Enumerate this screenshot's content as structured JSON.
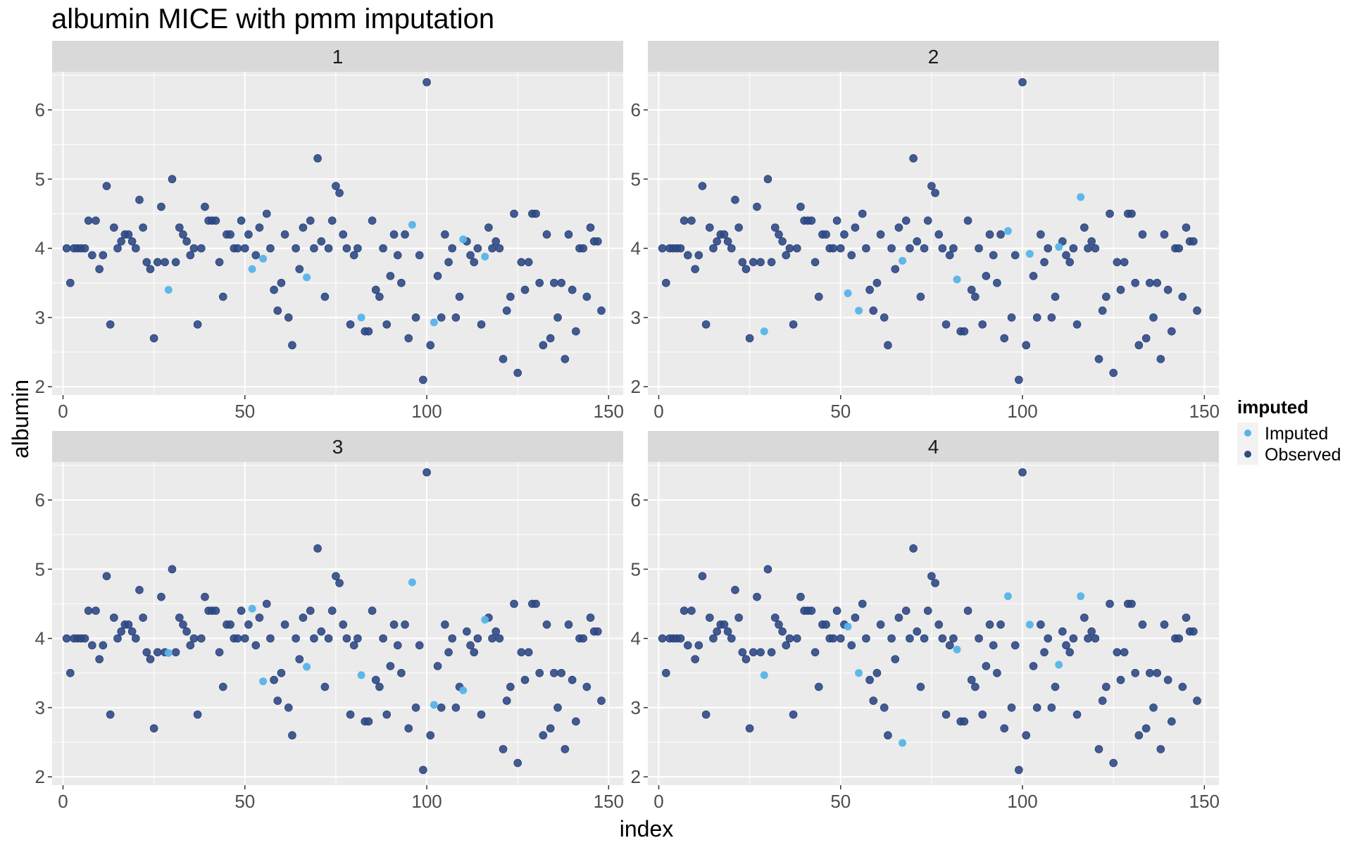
{
  "chart_data": {
    "type": "scatter",
    "title": "albumin MICE with pmm imputation",
    "xlabel": "index",
    "ylabel": "albumin",
    "xlim": [
      -3,
      154
    ],
    "ylim": [
      1.88,
      6.55
    ],
    "xticks": [
      0,
      50,
      100,
      150
    ],
    "yticks": [
      2,
      3,
      4,
      5,
      6
    ],
    "grid": true,
    "legend": {
      "title": "imputed",
      "position": "right",
      "entries": [
        {
          "label": "Imputed",
          "color": "#56B4E9"
        },
        {
          "label": "Observed",
          "color": "#2F4A86"
        }
      ]
    },
    "colors": {
      "imputed": "#56B4E9",
      "observed": "#2F4A86",
      "panel_bg": "#EBEBEB",
      "strip_bg": "#D9D9D9",
      "grid": "#FFFFFF"
    },
    "observed": [
      [
        1,
        4.0
      ],
      [
        2,
        3.5
      ],
      [
        3,
        4.0
      ],
      [
        4,
        4.0
      ],
      [
        5,
        4.0
      ],
      [
        6,
        4.0
      ],
      [
        7,
        4.4
      ],
      [
        8,
        3.9
      ],
      [
        9,
        4.4
      ],
      [
        10,
        3.7
      ],
      [
        11,
        3.9
      ],
      [
        12,
        4.9
      ],
      [
        13,
        2.9
      ],
      [
        14,
        4.3
      ],
      [
        15,
        4.0
      ],
      [
        16,
        4.1
      ],
      [
        17,
        4.2
      ],
      [
        18,
        4.2
      ],
      [
        19,
        4.1
      ],
      [
        20,
        4.0
      ],
      [
        21,
        4.7
      ],
      [
        22,
        4.3
      ],
      [
        23,
        3.8
      ],
      [
        24,
        3.7
      ],
      [
        25,
        2.7
      ],
      [
        26,
        3.8
      ],
      [
        27,
        4.6
      ],
      [
        28,
        3.8
      ],
      [
        30,
        5.0
      ],
      [
        31,
        3.8
      ],
      [
        32,
        4.3
      ],
      [
        33,
        4.2
      ],
      [
        34,
        4.1
      ],
      [
        35,
        3.9
      ],
      [
        36,
        4.0
      ],
      [
        37,
        2.9
      ],
      [
        38,
        4.0
      ],
      [
        39,
        4.6
      ],
      [
        40,
        4.4
      ],
      [
        41,
        4.4
      ],
      [
        42,
        4.4
      ],
      [
        43,
        3.8
      ],
      [
        44,
        3.3
      ],
      [
        45,
        4.2
      ],
      [
        46,
        4.2
      ],
      [
        47,
        4.0
      ],
      [
        48,
        4.0
      ],
      [
        49,
        4.4
      ],
      [
        50,
        4.0
      ],
      [
        51,
        4.2
      ],
      [
        53,
        3.9
      ],
      [
        54,
        4.3
      ],
      [
        56,
        4.5
      ],
      [
        57,
        4.0
      ],
      [
        58,
        3.4
      ],
      [
        59,
        3.1
      ],
      [
        60,
        3.5
      ],
      [
        61,
        4.2
      ],
      [
        62,
        3.0
      ],
      [
        63,
        2.6
      ],
      [
        64,
        4.0
      ],
      [
        65,
        3.7
      ],
      [
        66,
        4.3
      ],
      [
        68,
        4.4
      ],
      [
        69,
        4.0
      ],
      [
        70,
        5.3
      ],
      [
        71,
        4.1
      ],
      [
        72,
        3.3
      ],
      [
        73,
        4.0
      ],
      [
        74,
        4.4
      ],
      [
        75,
        4.9
      ],
      [
        76,
        4.8
      ],
      [
        77,
        4.2
      ],
      [
        78,
        4.0
      ],
      [
        79,
        2.9
      ],
      [
        80,
        3.9
      ],
      [
        81,
        4.0
      ],
      [
        83,
        2.8
      ],
      [
        84,
        2.8
      ],
      [
        85,
        4.4
      ],
      [
        86,
        3.4
      ],
      [
        87,
        3.3
      ],
      [
        88,
        4.0
      ],
      [
        89,
        2.9
      ],
      [
        90,
        3.6
      ],
      [
        91,
        4.2
      ],
      [
        92,
        3.9
      ],
      [
        93,
        3.5
      ],
      [
        94,
        4.2
      ],
      [
        95,
        2.7
      ],
      [
        97,
        3.0
      ],
      [
        98,
        3.9
      ],
      [
        99,
        2.1
      ],
      [
        100,
        6.4
      ],
      [
        101,
        2.6
      ],
      [
        103,
        3.6
      ],
      [
        104,
        3.0
      ],
      [
        105,
        4.2
      ],
      [
        106,
        3.8
      ],
      [
        107,
        4.0
      ],
      [
        108,
        3.0
      ],
      [
        109,
        3.3
      ],
      [
        111,
        4.1
      ],
      [
        112,
        3.9
      ],
      [
        113,
        3.8
      ],
      [
        114,
        4.0
      ],
      [
        115,
        2.9
      ],
      [
        117,
        4.3
      ],
      [
        118,
        4.0
      ],
      [
        119,
        4.1
      ],
      [
        120,
        4.0
      ],
      [
        121,
        2.4
      ],
      [
        122,
        3.1
      ],
      [
        123,
        3.3
      ],
      [
        124,
        4.5
      ],
      [
        125,
        2.2
      ],
      [
        126,
        3.8
      ],
      [
        127,
        3.4
      ],
      [
        128,
        3.8
      ],
      [
        129,
        4.5
      ],
      [
        130,
        4.5
      ],
      [
        131,
        3.5
      ],
      [
        132,
        2.6
      ],
      [
        133,
        4.2
      ],
      [
        134,
        2.7
      ],
      [
        135,
        3.5
      ],
      [
        136,
        3.0
      ],
      [
        137,
        3.5
      ],
      [
        138,
        2.4
      ],
      [
        139,
        4.2
      ],
      [
        140,
        3.4
      ],
      [
        141,
        2.8
      ],
      [
        142,
        4.0
      ],
      [
        143,
        4.0
      ],
      [
        144,
        3.3
      ],
      [
        145,
        4.3
      ],
      [
        146,
        4.1
      ],
      [
        147,
        4.1
      ],
      [
        148,
        3.1
      ]
    ],
    "imputed_index": [
      29,
      52,
      55,
      67,
      82,
      96,
      102,
      110,
      116
    ],
    "panels": [
      {
        "label": "1",
        "imputed_values": [
          3.4,
          3.7,
          3.85,
          3.58,
          3.0,
          4.34,
          2.93,
          4.13,
          3.88
        ]
      },
      {
        "label": "2",
        "imputed_values": [
          2.8,
          3.35,
          3.1,
          3.82,
          3.55,
          4.25,
          3.92,
          4.02,
          4.74
        ]
      },
      {
        "label": "3",
        "imputed_values": [
          3.79,
          4.43,
          3.38,
          3.59,
          3.47,
          4.81,
          3.04,
          3.25,
          4.27
        ]
      },
      {
        "label": "4",
        "imputed_values": [
          3.47,
          4.17,
          3.5,
          2.49,
          3.84,
          4.61,
          4.2,
          3.62,
          4.61
        ]
      }
    ]
  }
}
